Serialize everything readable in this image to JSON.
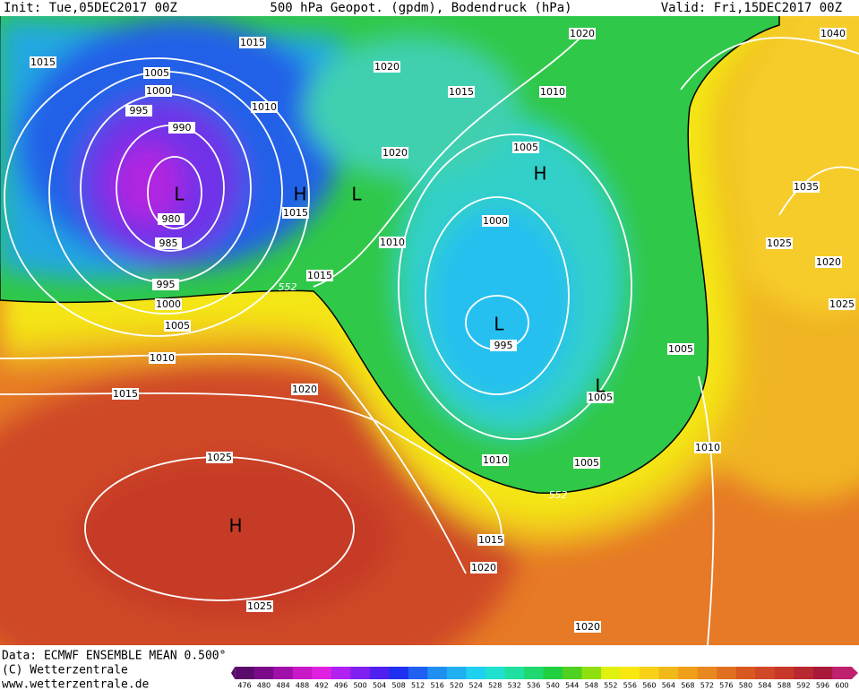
{
  "header": {
    "init": "Init: Tue,05DEC2017 00Z",
    "title": "500 hPa Geopot. (gpdm), Bodendruck (hPa)",
    "valid": "Valid: Fri,15DEC2017 00Z"
  },
  "isobar_labels": [
    1015,
    1015,
    1005,
    1000,
    995,
    990,
    1010,
    1020,
    1020,
    1040,
    1015,
    1010,
    1005,
    1020,
    1015,
    980,
    985,
    1010,
    1000,
    1035,
    1025,
    1020,
    1025,
    995,
    1015,
    1000,
    1005,
    995,
    1010,
    1005,
    1015,
    1020,
    1005,
    1010,
    1010,
    1005,
    1025,
    1015,
    1020,
    1025,
    1020
  ],
  "geopotential_labels": [
    552,
    552
  ],
  "pressure_centers": [
    "L",
    "L",
    "H",
    "H",
    "L",
    "L",
    "H"
  ],
  "footer": {
    "data": "Data: ECMWF ENSEMBLE MEAN 0.500°",
    "copyright": "(C) Wetterzentrale",
    "url": "www.wetterzentrale.de"
  },
  "colorbar": {
    "ticks": [
      476,
      480,
      484,
      488,
      492,
      496,
      500,
      504,
      508,
      512,
      516,
      520,
      524,
      528,
      532,
      536,
      540,
      544,
      548,
      552,
      556,
      560,
      564,
      568,
      572,
      576,
      580,
      584,
      588,
      592,
      596,
      600
    ]
  }
}
